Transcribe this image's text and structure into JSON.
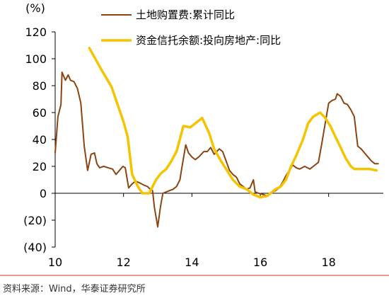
{
  "source": "资料来源：Wind，华泰证券研究所",
  "colors": {
    "land": "#8B4513",
    "trust": "#F5C400",
    "divider": "#C0392B",
    "axis": "#000000"
  },
  "chart_data": {
    "type": "line",
    "y_unit_label": "(%)",
    "xlabel": "",
    "ylabel": "",
    "xlim": [
      10,
      19.6
    ],
    "ylim": [
      -40,
      120
    ],
    "x_ticks": [
      10,
      12,
      14,
      16,
      18
    ],
    "x_tick_labels": [
      "10",
      "12",
      "14",
      "16",
      "18"
    ],
    "y_ticks": [
      -40,
      -20,
      0,
      20,
      40,
      60,
      80,
      100,
      120
    ],
    "y_tick_labels": [
      "(40)",
      "(20)",
      "0",
      "20",
      "40",
      "60",
      "80",
      "100",
      "120"
    ],
    "grid": false,
    "legend_position": "top",
    "series": [
      {
        "name": "土地购置费:累计同比",
        "color": "#8B4513",
        "points": [
          [
            10.0,
            30
          ],
          [
            10.08,
            57
          ],
          [
            10.17,
            66
          ],
          [
            10.2,
            90
          ],
          [
            10.3,
            84
          ],
          [
            10.38,
            88
          ],
          [
            10.45,
            84
          ],
          [
            10.55,
            83
          ],
          [
            10.65,
            78
          ],
          [
            10.75,
            67
          ],
          [
            10.85,
            35
          ],
          [
            10.95,
            17
          ],
          [
            11.05,
            29
          ],
          [
            11.15,
            30
          ],
          [
            11.22,
            22
          ],
          [
            11.3,
            19
          ],
          [
            11.42,
            20
          ],
          [
            11.55,
            19
          ],
          [
            11.68,
            18
          ],
          [
            11.78,
            14
          ],
          [
            11.88,
            17
          ],
          [
            11.98,
            20
          ],
          [
            12.05,
            19
          ],
          [
            12.15,
            4
          ],
          [
            12.25,
            7
          ],
          [
            12.35,
            9
          ],
          [
            12.45,
            8
          ],
          [
            12.6,
            6
          ],
          [
            12.7,
            5
          ],
          [
            12.78,
            3
          ],
          [
            12.85,
            2
          ],
          [
            12.9,
            -10
          ],
          [
            13.0,
            -25
          ],
          [
            13.08,
            -10
          ],
          [
            13.15,
            0
          ],
          [
            13.25,
            1
          ],
          [
            13.35,
            2
          ],
          [
            13.45,
            3
          ],
          [
            13.55,
            5
          ],
          [
            13.65,
            10
          ],
          [
            13.7,
            18
          ],
          [
            13.82,
            36
          ],
          [
            13.9,
            30
          ],
          [
            14.0,
            27
          ],
          [
            14.1,
            25
          ],
          [
            14.2,
            27
          ],
          [
            14.35,
            31
          ],
          [
            14.45,
            31
          ],
          [
            14.55,
            34
          ],
          [
            14.65,
            29
          ],
          [
            14.8,
            33
          ],
          [
            14.9,
            31
          ],
          [
            15.0,
            24
          ],
          [
            15.1,
            17
          ],
          [
            15.2,
            14
          ],
          [
            15.3,
            12
          ],
          [
            15.4,
            7
          ],
          [
            15.5,
            5
          ],
          [
            15.6,
            3
          ],
          [
            15.7,
            4
          ],
          [
            15.8,
            10
          ],
          [
            15.85,
            1
          ],
          [
            15.95,
            0
          ],
          [
            16.1,
            -1
          ],
          [
            16.2,
            -2
          ],
          [
            16.3,
            0
          ],
          [
            16.45,
            2
          ],
          [
            16.55,
            4
          ],
          [
            16.65,
            8
          ],
          [
            16.75,
            13
          ],
          [
            16.85,
            17
          ],
          [
            16.95,
            21
          ],
          [
            17.05,
            19
          ],
          [
            17.15,
            18
          ],
          [
            17.3,
            20
          ],
          [
            17.45,
            18
          ],
          [
            17.55,
            20
          ],
          [
            17.7,
            23
          ],
          [
            17.8,
            37
          ],
          [
            17.9,
            52
          ],
          [
            18.0,
            67
          ],
          [
            18.1,
            69
          ],
          [
            18.2,
            70
          ],
          [
            18.25,
            74
          ],
          [
            18.35,
            72
          ],
          [
            18.45,
            67
          ],
          [
            18.55,
            66
          ],
          [
            18.65,
            62
          ],
          [
            18.75,
            57
          ],
          [
            18.85,
            35
          ],
          [
            18.95,
            33
          ],
          [
            19.05,
            30
          ],
          [
            19.15,
            27
          ],
          [
            19.25,
            24
          ],
          [
            19.35,
            22
          ],
          [
            19.45,
            22
          ]
        ]
      },
      {
        "name": "资金信托余额:投向房地产:同比",
        "color": "#F5C400",
        "points": [
          [
            11.0,
            108
          ],
          [
            11.35,
            92
          ],
          [
            11.65,
            79
          ],
          [
            12.0,
            53
          ],
          [
            12.12,
            42
          ],
          [
            12.25,
            14
          ],
          [
            12.42,
            5
          ],
          [
            12.55,
            0
          ],
          [
            12.75,
            0
          ],
          [
            12.95,
            10
          ],
          [
            13.1,
            15
          ],
          [
            13.25,
            18
          ],
          [
            13.4,
            24
          ],
          [
            13.55,
            31
          ],
          [
            13.75,
            50
          ],
          [
            13.95,
            49
          ],
          [
            14.1,
            52
          ],
          [
            14.3,
            56
          ],
          [
            14.5,
            45
          ],
          [
            14.65,
            33
          ],
          [
            14.85,
            24
          ],
          [
            15.0,
            18
          ],
          [
            15.2,
            10
          ],
          [
            15.4,
            5
          ],
          [
            15.6,
            3
          ],
          [
            15.8,
            -1
          ],
          [
            16.0,
            -3
          ],
          [
            16.2,
            -2
          ],
          [
            16.45,
            3
          ],
          [
            16.6,
            5
          ],
          [
            16.75,
            10
          ],
          [
            16.9,
            20
          ],
          [
            17.05,
            28
          ],
          [
            17.25,
            40
          ],
          [
            17.4,
            52
          ],
          [
            17.55,
            57
          ],
          [
            17.75,
            60
          ],
          [
            17.9,
            56
          ],
          [
            18.05,
            50
          ],
          [
            18.2,
            42
          ],
          [
            18.35,
            34
          ],
          [
            18.5,
            26
          ],
          [
            18.65,
            20
          ],
          [
            18.75,
            18
          ],
          [
            19.0,
            18
          ],
          [
            19.2,
            18
          ],
          [
            19.4,
            17
          ]
        ]
      }
    ]
  }
}
